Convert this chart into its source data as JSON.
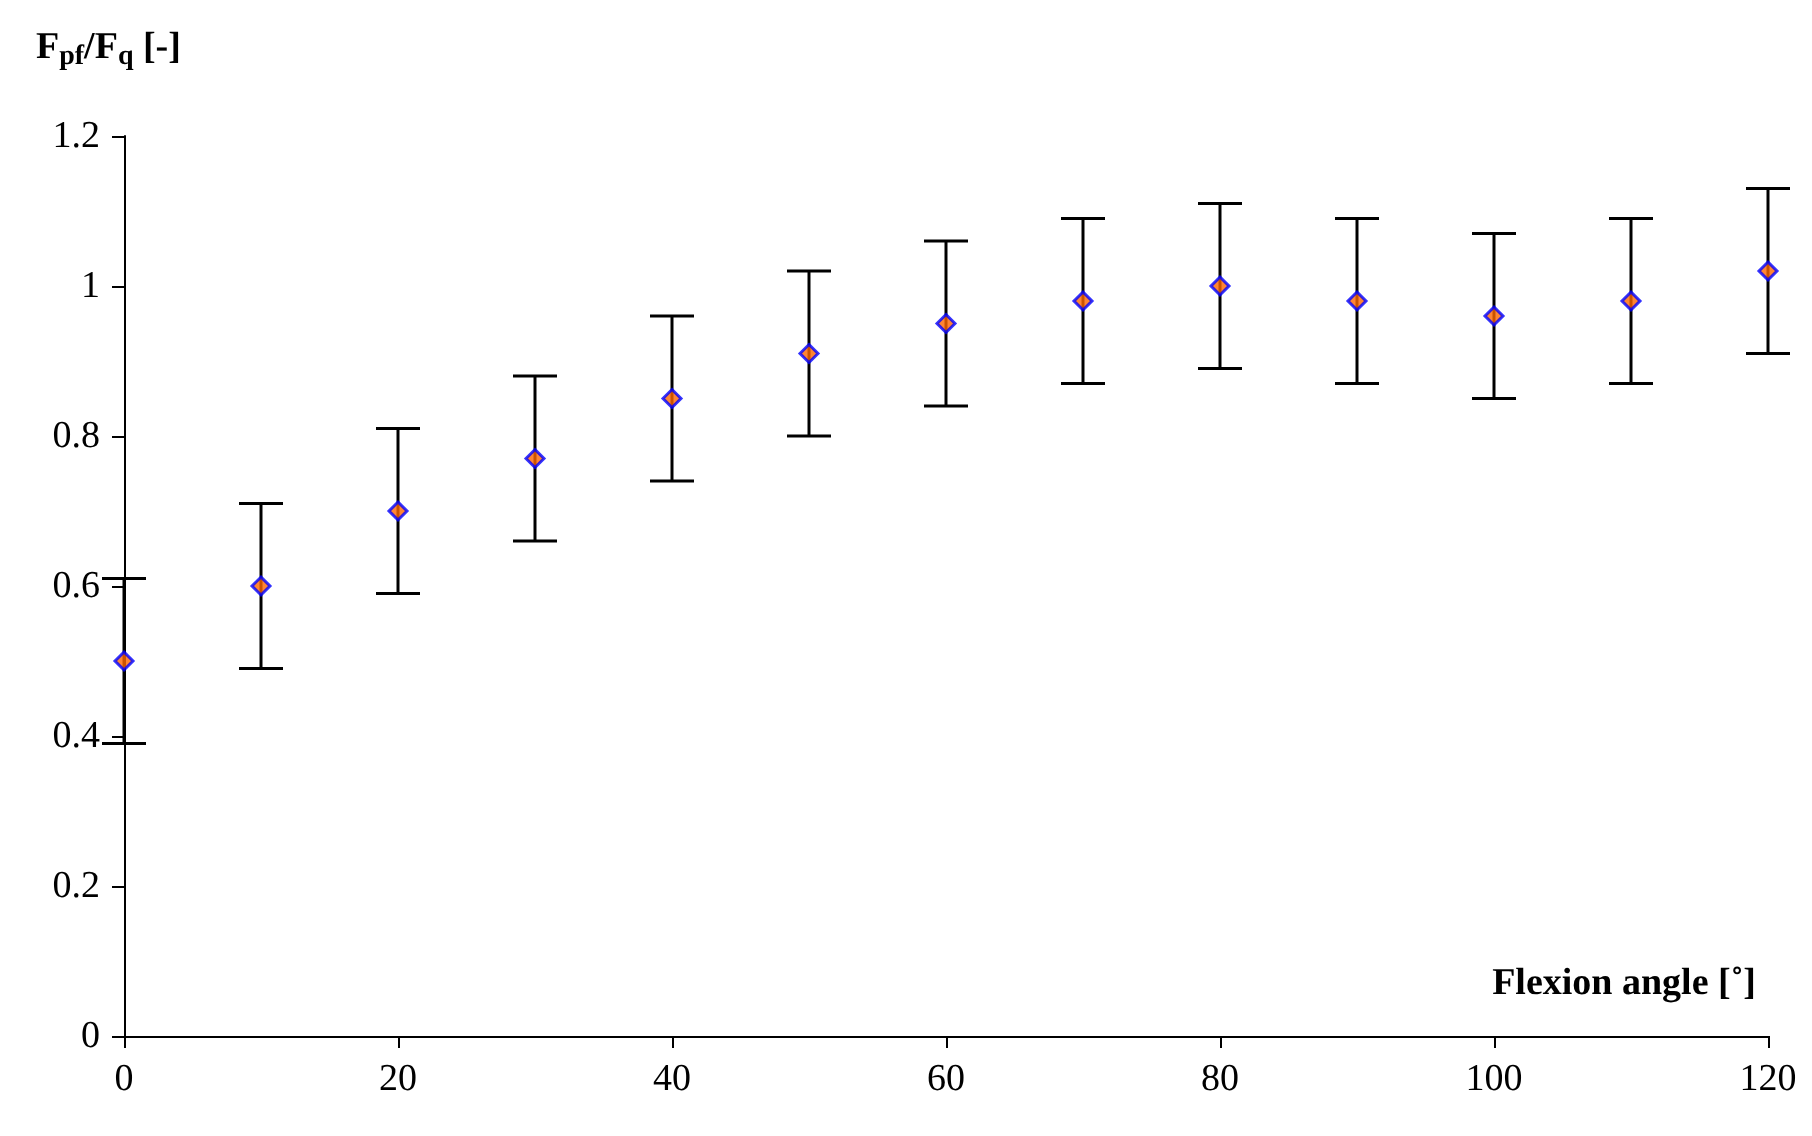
{
  "chart_data": {
    "type": "scatter",
    "xlabel": "Flexion angle [˚]",
    "ylabel": "F$_{pf}$/F$_{q}$ [-]",
    "x": [
      0,
      10,
      20,
      30,
      40,
      50,
      60,
      70,
      80,
      90,
      100,
      110,
      120
    ],
    "values": [
      0.5,
      0.6,
      0.7,
      0.77,
      0.85,
      0.91,
      0.95,
      0.98,
      1.0,
      0.98,
      0.96,
      0.98,
      1.02
    ],
    "errors": [
      0.11,
      0.11,
      0.11,
      0.11,
      0.11,
      0.11,
      0.11,
      0.11,
      0.11,
      0.11,
      0.11,
      0.11,
      0.11
    ],
    "color": "#ff6600",
    "marker": "diamond",
    "xlim": [
      0,
      120
    ],
    "xticks": [
      0,
      20,
      40,
      60,
      80,
      100,
      120
    ],
    "ylim": [
      0,
      1.2
    ],
    "yticks": [
      0,
      0.2,
      0.4,
      0.6,
      0.8,
      1,
      1.2
    ],
    "grid": false
  }
}
